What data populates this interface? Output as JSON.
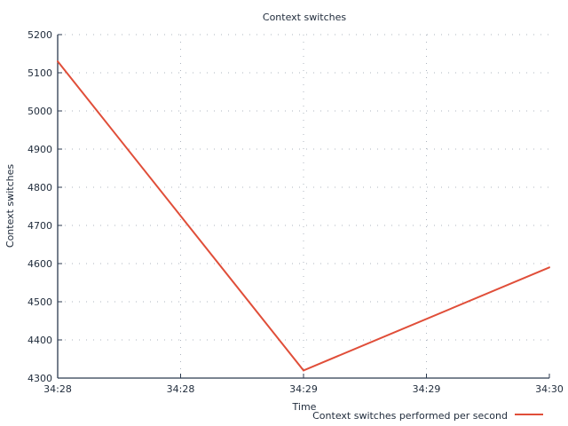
{
  "chart_data": {
    "type": "line",
    "title": "Context switches",
    "xlabel": "Time",
    "ylabel": "Context switches",
    "x_ticks": [
      "34:28",
      "34:28",
      "34:29",
      "34:29",
      "34:30"
    ],
    "ylim": [
      4300,
      5200
    ],
    "y_ticks": [
      4300,
      4400,
      4500,
      4600,
      4700,
      4800,
      4900,
      5000,
      5100,
      5200
    ],
    "grid": true,
    "legend_position": "bottom-right",
    "series": [
      {
        "name": "Context switches performed per second",
        "color": "#e04e39",
        "points": [
          {
            "x": 0,
            "y": 5130
          },
          {
            "x": 0.5,
            "y": 4320
          },
          {
            "x": 1,
            "y": 4590
          }
        ]
      }
    ]
  }
}
